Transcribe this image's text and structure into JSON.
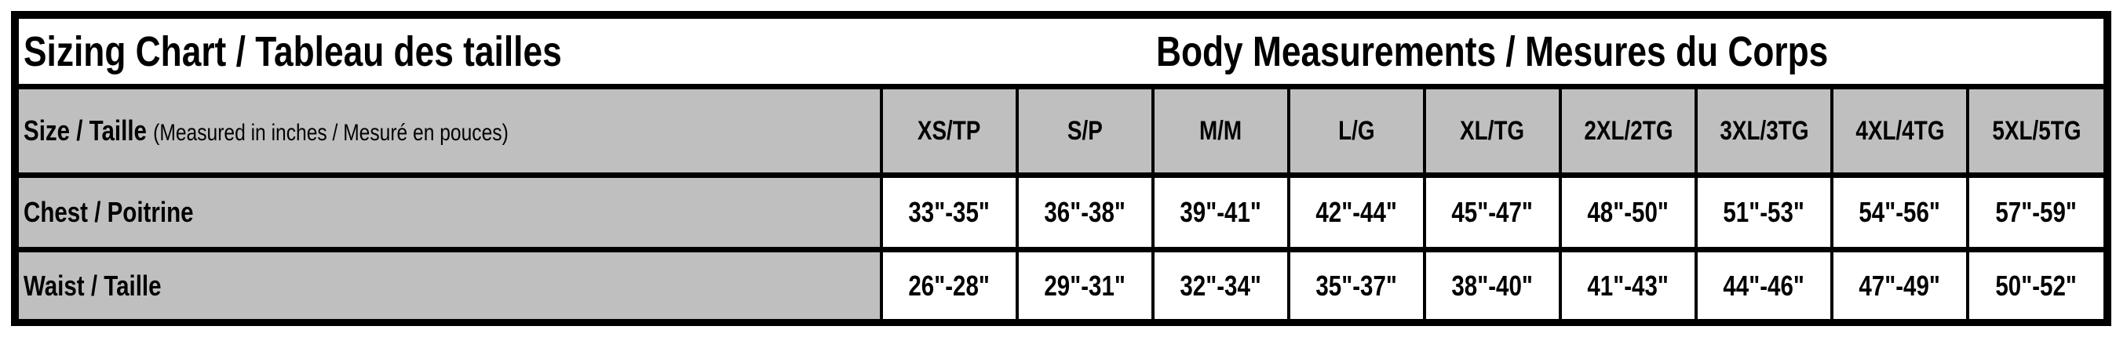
{
  "title": "Sizing Chart / Tableau des tailles",
  "section_title": "Body Measurements / Mesures du Corps",
  "size_row": {
    "label": "Size / Taille",
    "note": "(Measured in inches / Mesuré en pouces)"
  },
  "sizes": [
    "XS/TP",
    "S/P",
    "M/M",
    "L/G",
    "XL/TG",
    "2XL/2TG",
    "3XL/3TG",
    "4XL/4TG",
    "5XL/5TG"
  ],
  "rows": [
    {
      "label": "Chest / Poitrine",
      "values": [
        "33\"-35\"",
        "36\"-38\"",
        "39\"-41\"",
        "42\"-44\"",
        "45\"-47\"",
        "48\"-50\"",
        "51\"-53\"",
        "54\"-56\"",
        "57\"-59\""
      ]
    },
    {
      "label": "Waist / Taille",
      "values": [
        "26\"-28\"",
        "29\"-31\"",
        "32\"-34\"",
        "35\"-37\"",
        "38\"-40\"",
        "41\"-43\"",
        "44\"-46\"",
        "47\"-49\"",
        "50\"-52\""
      ]
    }
  ],
  "colors": {
    "header_bg": "#bfbfbf",
    "border": "#000000",
    "cell_bg": "#ffffff"
  }
}
